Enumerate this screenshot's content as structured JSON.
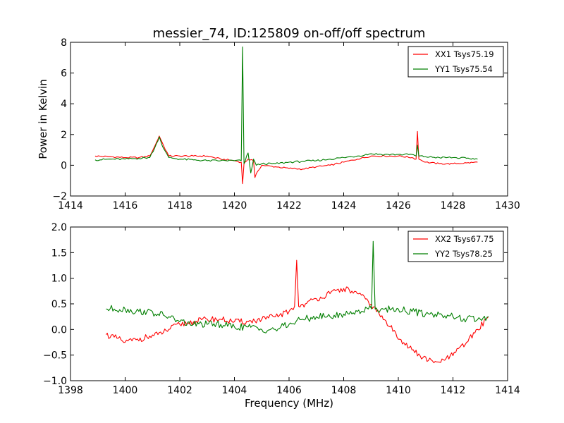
{
  "colors": {
    "xx": "#ff0000",
    "yy": "#007f00"
  },
  "chart_data": [
    {
      "type": "line",
      "title": "messier_74, ID:125809 on-off/off spectrum",
      "xlabel": "",
      "ylabel": "Power in Kelvin",
      "xlim": [
        1414,
        1430
      ],
      "ylim": [
        -2,
        8
      ],
      "xticks": [
        1414,
        1416,
        1418,
        1420,
        1422,
        1424,
        1426,
        1428,
        1430
      ],
      "yticks": [
        -2,
        0,
        2,
        4,
        6,
        8
      ],
      "xtick_labels": [
        "1414",
        "1416",
        "1418",
        "1420",
        "1422",
        "1424",
        "1426",
        "1428",
        "1430"
      ],
      "ytick_labels": [
        "−2",
        "0",
        "2",
        "4",
        "6",
        "8"
      ],
      "legend": "top-right",
      "grid": false,
      "series": [
        {
          "name": "XX1 Tsys75.19",
          "color": "#ff0000",
          "x": [
            1414.9,
            1415.5,
            1416.0,
            1416.5,
            1416.9,
            1417.1,
            1417.25,
            1417.4,
            1417.6,
            1418.0,
            1418.5,
            1419.0,
            1419.5,
            1420.0,
            1420.25,
            1420.3,
            1420.35,
            1420.5,
            1420.7,
            1420.75,
            1420.85,
            1421.0,
            1421.5,
            1422.0,
            1422.5,
            1423.0,
            1423.5,
            1424.0,
            1424.5,
            1425.0,
            1425.5,
            1426.0,
            1426.5,
            1426.65,
            1426.7,
            1426.75,
            1427.0,
            1427.5,
            1428.0,
            1428.5,
            1428.9
          ],
          "y": [
            0.6,
            0.55,
            0.5,
            0.5,
            0.6,
            1.3,
            1.9,
            1.3,
            0.6,
            0.6,
            0.6,
            0.6,
            0.4,
            0.3,
            0.2,
            -1.2,
            0.1,
            0.4,
            0.3,
            -0.8,
            -0.4,
            0.0,
            -0.1,
            -0.2,
            -0.25,
            -0.1,
            0.0,
            0.2,
            0.4,
            0.6,
            0.6,
            0.6,
            0.5,
            0.4,
            2.2,
            0.4,
            0.2,
            0.1,
            0.1,
            0.15,
            0.2
          ]
        },
        {
          "name": "YY1 Tsys75.54",
          "color": "#007f00",
          "x": [
            1414.9,
            1415.5,
            1416.0,
            1416.5,
            1416.9,
            1417.1,
            1417.25,
            1417.4,
            1417.6,
            1418.0,
            1418.5,
            1419.0,
            1419.5,
            1420.0,
            1420.25,
            1420.3,
            1420.35,
            1420.5,
            1420.6,
            1420.7,
            1420.8,
            1421.0,
            1421.5,
            1422.0,
            1422.5,
            1423.0,
            1423.5,
            1424.0,
            1424.5,
            1425.0,
            1425.5,
            1426.0,
            1426.5,
            1426.65,
            1426.7,
            1426.75,
            1427.0,
            1427.5,
            1428.0,
            1428.5,
            1428.9
          ],
          "y": [
            0.35,
            0.4,
            0.4,
            0.45,
            0.5,
            1.2,
            1.85,
            1.1,
            0.5,
            0.4,
            0.35,
            0.3,
            0.3,
            0.3,
            0.3,
            7.7,
            0.1,
            0.8,
            -0.5,
            0.4,
            0.0,
            0.1,
            0.1,
            0.2,
            0.25,
            0.3,
            0.4,
            0.5,
            0.6,
            0.75,
            0.7,
            0.7,
            0.7,
            0.6,
            1.3,
            0.6,
            0.55,
            0.5,
            0.5,
            0.45,
            0.4
          ]
        }
      ]
    },
    {
      "type": "line",
      "title": "",
      "xlabel": "Frequency (MHz)",
      "ylabel": "",
      "xlim": [
        1398,
        1414
      ],
      "ylim": [
        -1.0,
        2.0
      ],
      "xticks": [
        1398,
        1400,
        1402,
        1404,
        1406,
        1408,
        1410,
        1412,
        1414
      ],
      "yticks": [
        -1.0,
        -0.5,
        0.0,
        0.5,
        1.0,
        1.5,
        2.0
      ],
      "xtick_labels": [
        "1398",
        "1400",
        "1402",
        "1404",
        "1406",
        "1408",
        "1410",
        "1412",
        "1414"
      ],
      "ytick_labels": [
        "−1.0",
        "−0.5",
        "0.0",
        "0.5",
        "1.0",
        "1.5",
        "2.0"
      ],
      "legend": "top-right",
      "grid": false,
      "series": [
        {
          "name": "XX2 Tsys67.75",
          "color": "#ff0000",
          "x": [
            1399.3,
            1399.6,
            1400.0,
            1400.4,
            1400.8,
            1401.2,
            1401.6,
            1402.0,
            1402.5,
            1403.0,
            1403.5,
            1404.0,
            1404.5,
            1405.0,
            1405.5,
            1406.0,
            1406.2,
            1406.28,
            1406.35,
            1406.6,
            1407.0,
            1407.5,
            1408.0,
            1408.5,
            1408.9,
            1409.3,
            1409.7,
            1410.1,
            1410.5,
            1410.9,
            1411.3,
            1411.7,
            1412.1,
            1412.5,
            1412.9,
            1413.3
          ],
          "y": [
            -0.1,
            -0.15,
            -0.25,
            -0.2,
            -0.15,
            -0.1,
            0.0,
            0.1,
            0.15,
            0.2,
            0.2,
            0.15,
            0.15,
            0.2,
            0.25,
            0.35,
            0.45,
            1.35,
            0.45,
            0.5,
            0.6,
            0.7,
            0.8,
            0.7,
            0.55,
            0.3,
            0.05,
            -0.2,
            -0.4,
            -0.55,
            -0.65,
            -0.6,
            -0.45,
            -0.25,
            0.0,
            0.25
          ]
        },
        {
          "name": "YY2 Tsys78.25",
          "color": "#007f00",
          "x": [
            1399.3,
            1399.6,
            1400.0,
            1400.4,
            1400.8,
            1401.2,
            1401.6,
            1402.0,
            1402.5,
            1403.0,
            1403.5,
            1404.0,
            1404.5,
            1405.0,
            1405.5,
            1406.0,
            1406.5,
            1407.0,
            1407.5,
            1408.0,
            1408.5,
            1408.9,
            1409.02,
            1409.08,
            1409.15,
            1409.5,
            1410.0,
            1410.5,
            1411.0,
            1411.5,
            1412.0,
            1412.5,
            1413.0,
            1413.3
          ],
          "y": [
            0.4,
            0.4,
            0.4,
            0.35,
            0.35,
            0.3,
            0.25,
            0.15,
            0.1,
            0.1,
            0.1,
            0.05,
            0.05,
            0.0,
            0.0,
            0.1,
            0.2,
            0.25,
            0.25,
            0.3,
            0.35,
            0.4,
            0.4,
            1.72,
            0.4,
            0.4,
            0.4,
            0.35,
            0.3,
            0.3,
            0.25,
            0.2,
            0.2,
            0.25
          ]
        }
      ]
    }
  ]
}
